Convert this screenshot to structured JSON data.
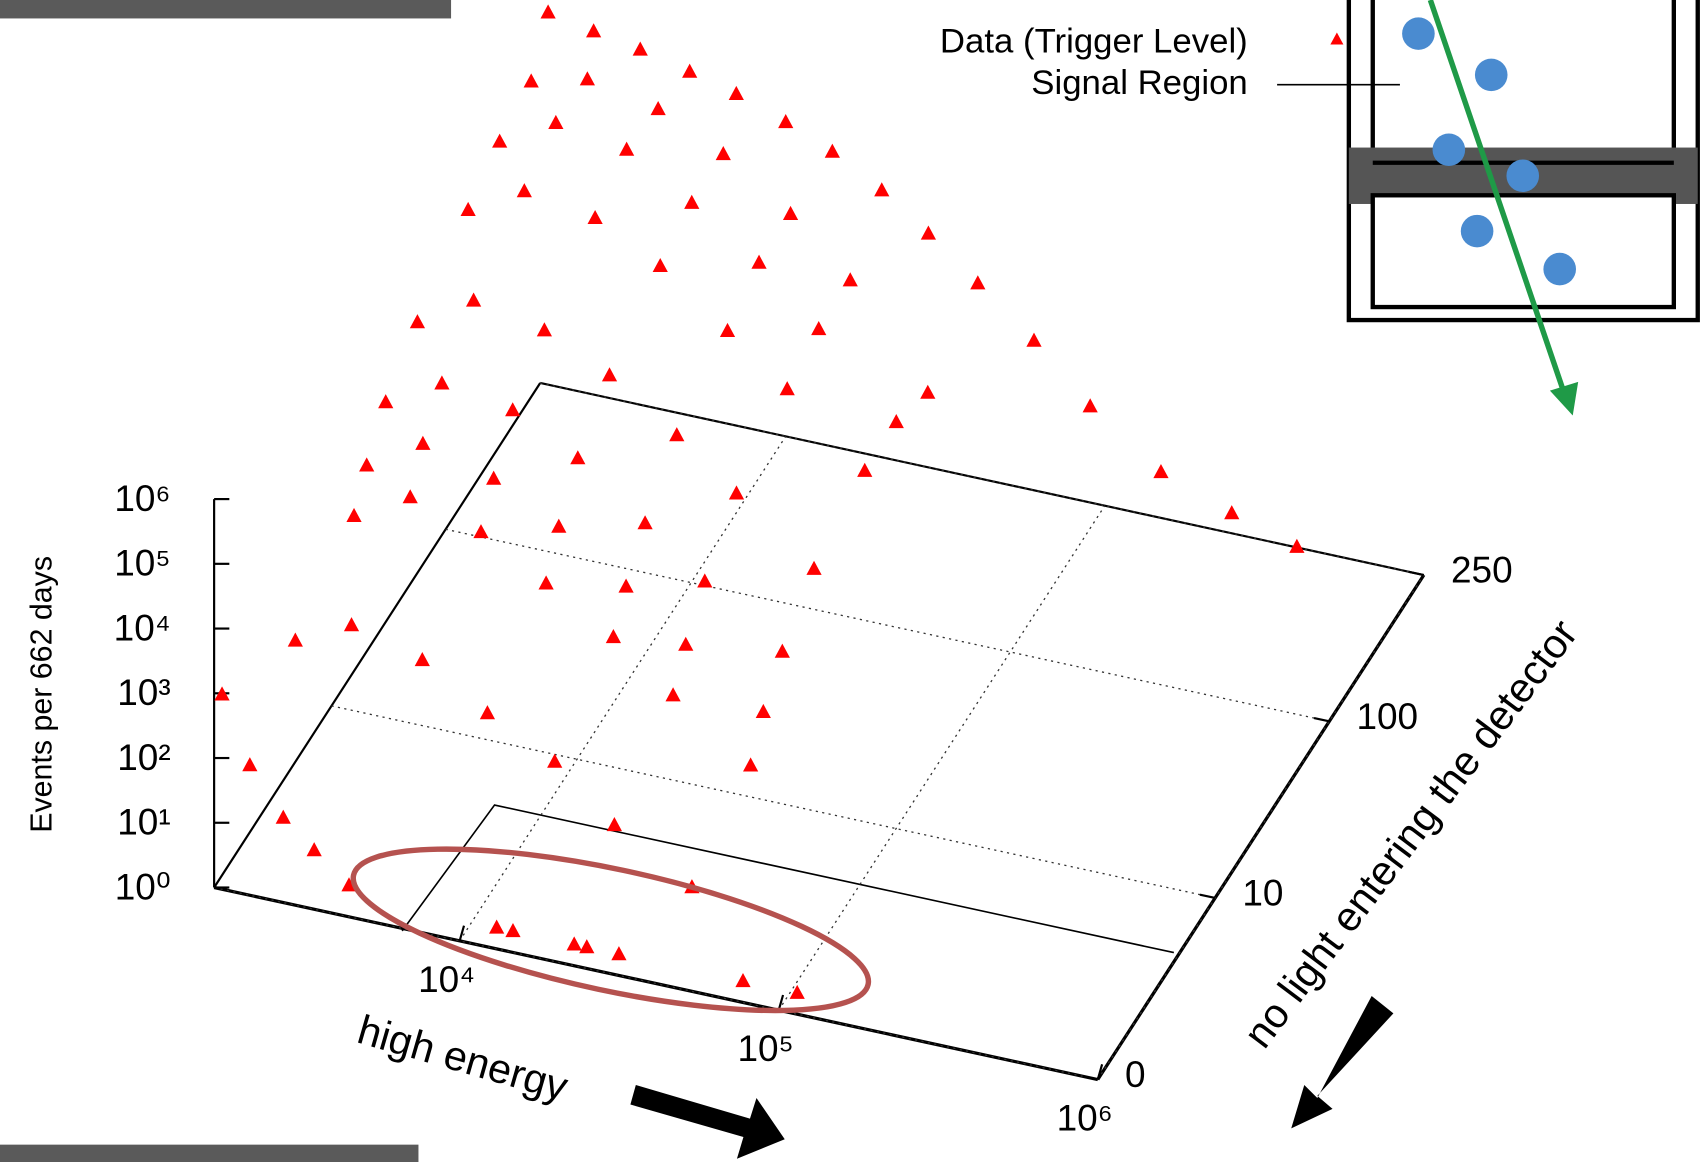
{
  "chart_data": {
    "type": "scatter3d",
    "xlabel": "high energy",
    "zlabel": "Events per 662 days",
    "depthlabel": "no light entering the detector",
    "xscale": "log",
    "zscale": "log",
    "grid": true,
    "xlim": [
      1700,
      1000000
    ],
    "xticks": [
      {
        "value": 10000,
        "label": "10⁴"
      },
      {
        "value": 100000,
        "label": "10⁵"
      },
      {
        "value": 1000000,
        "label": "10⁶"
      }
    ],
    "zlim": [
      1,
      1000000
    ],
    "zticks": [
      {
        "value": 1,
        "label": "10⁰"
      },
      {
        "value": 10,
        "label": "10¹"
      },
      {
        "value": 100,
        "label": "10²"
      },
      {
        "value": 1000,
        "label": "10³"
      },
      {
        "value": 10000,
        "label": "10⁴"
      },
      {
        "value": 100000,
        "label": "10⁵"
      },
      {
        "value": 1000000,
        "label": "10⁶"
      }
    ],
    "depthlim": [
      0,
      250
    ],
    "depthticks": [
      0,
      10,
      100,
      250
    ],
    "annotations": [
      "Signal Region"
    ],
    "series": [
      {
        "name": "Data (Trigger Level)",
        "color": "#ff0000",
        "x": [
          1800,
          2500,
          3500,
          5000,
          7000,
          10000,
          14000,
          20000,
          28000,
          40000,
          60000,
          90000,
          150000,
          250000,
          400000,
          2000,
          3000,
          5000,
          8000,
          13000,
          20000,
          35000,
          2000,
          3000,
          5000,
          8000,
          13000,
          20000,
          35000,
          2000,
          3000,
          5000,
          8000,
          13000,
          20000,
          35000,
          2000,
          3000,
          5000,
          8000,
          13000,
          20000,
          35000,
          2000,
          3000,
          5000,
          8000,
          13000,
          20000,
          35000,
          2000,
          3000,
          5000,
          8000,
          13000,
          20000,
          35000,
          2000,
          3000,
          5000,
          8000,
          13000,
          20000,
          35000,
          2000,
          3000,
          5000,
          8000,
          13000,
          20000,
          35000,
          1800,
          2200,
          2800,
          3500,
          4500,
          12000,
          13500,
          21000,
          23000,
          29000,
          71000,
          105000
        ],
        "depth": [
          250,
          250,
          250,
          250,
          250,
          250,
          250,
          250,
          250,
          250,
          250,
          250,
          250,
          250,
          250,
          200,
          200,
          200,
          200,
          200,
          200,
          200,
          150,
          150,
          150,
          150,
          150,
          150,
          150,
          100,
          100,
          100,
          100,
          100,
          100,
          100,
          60,
          60,
          60,
          60,
          60,
          60,
          60,
          35,
          35,
          35,
          35,
          35,
          35,
          35,
          20,
          20,
          20,
          20,
          20,
          20,
          20,
          10,
          10,
          10,
          10,
          10,
          10,
          10,
          5,
          5,
          5,
          5,
          5,
          5,
          5,
          0,
          0,
          0,
          0,
          0,
          1,
          1,
          1,
          1,
          1,
          1,
          1
        ],
        "values": [
          550000,
          400000,
          300000,
          200000,
          130000,
          70000,
          35000,
          13000,
          4000,
          1000,
          200,
          30,
          5,
          2,
          1,
          300000,
          500000,
          300000,
          100000,
          20000,
          3000,
          100,
          200000,
          600000,
          400000,
          100000,
          20000,
          3000,
          200,
          100000,
          300000,
          200000,
          60000,
          10000,
          2000,
          200,
          30000,
          100000,
          60000,
          20000,
          4000,
          800,
          100,
          10000,
          30000,
          20000,
          6000,
          1000,
          200,
          30,
          3000,
          10000,
          5000,
          1500,
          300,
          60,
          10,
          1000,
          3000,
          1500,
          400,
          100,
          20,
          3,
          300,
          800,
          400,
          100,
          30,
          5,
          1,
          1000,
          100,
          20,
          8,
          3,
          1,
          1,
          1,
          1,
          1,
          1,
          1
        ]
      }
    ]
  }
}
